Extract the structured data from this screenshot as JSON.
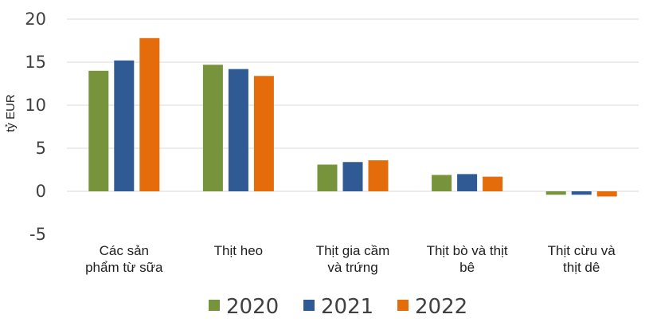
{
  "chart_data": {
    "type": "bar",
    "title": "",
    "xlabel": "",
    "ylabel": "tỷ EUR",
    "ylim": [
      -5,
      20
    ],
    "yticks": [
      20,
      15,
      10,
      5,
      0,
      -5
    ],
    "grid": true,
    "legend_position": "bottom",
    "categories": [
      [
        "Các sản",
        "phẩm từ sữa"
      ],
      [
        "Thịt heo"
      ],
      [
        "Thịt gia cầm",
        "và trứng"
      ],
      [
        "Thịt bò và thịt",
        "bê"
      ],
      [
        "Thịt cừu và",
        "thịt dê"
      ]
    ],
    "series": [
      {
        "name": "2020",
        "color": "#77933c",
        "values": [
          14.0,
          14.7,
          3.1,
          1.9,
          -0.4
        ]
      },
      {
        "name": "2021",
        "color": "#2f5a93",
        "values": [
          15.2,
          14.2,
          3.4,
          2.0,
          -0.4
        ]
      },
      {
        "name": "2022",
        "color": "#e46c0a",
        "values": [
          17.8,
          13.4,
          3.6,
          1.7,
          -0.6
        ]
      }
    ]
  }
}
